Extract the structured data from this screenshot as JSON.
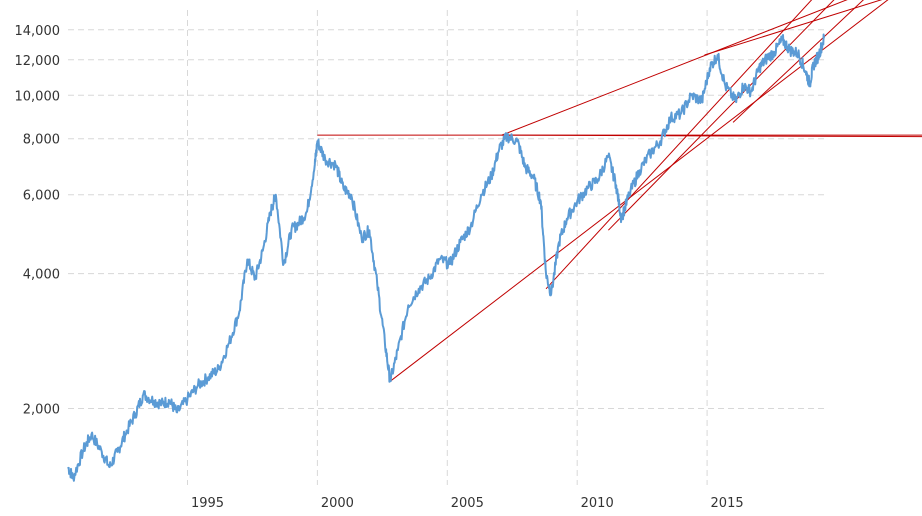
{
  "chart_data": {
    "type": "line",
    "title": "",
    "xlabel": "",
    "ylabel": "",
    "y_scale": "log",
    "xlim": [
      1990.4,
      2019.5
    ],
    "ylim": [
      1350,
      15500
    ],
    "grid": true,
    "x_ticks": [
      1995,
      2000,
      2005,
      2010,
      2015
    ],
    "x_tick_labels": [
      "1995",
      "2000",
      "2005",
      "2010",
      "2015"
    ],
    "y_ticks": [
      2000,
      4000,
      6000,
      8000,
      10000,
      12000,
      14000
    ],
    "y_tick_labels": [
      "2,000",
      "4,000",
      "6,000",
      "8,000",
      "10,000",
      "12,000",
      "14,000"
    ],
    "colors": {
      "series": "#5b9bd5",
      "trendlines": "#c00000",
      "grid": "#d8d8d8",
      "text": "#333333"
    },
    "series": [
      {
        "x": [
          1990.4,
          1990.6,
          1991.0,
          1991.3,
          1991.7,
          1992.0,
          1992.3,
          1992.6,
          1993.0,
          1993.3,
          1993.7,
          1994.0,
          1994.3,
          1994.6,
          1995.0,
          1995.4,
          1995.8,
          1996.2,
          1996.6,
          1997.0,
          1997.3,
          1997.6,
          1997.9,
          1998.2,
          1998.4,
          1998.7,
          1999.0,
          1999.3,
          1999.6,
          1999.9,
          2000.0,
          2000.3,
          2000.7,
          2001.0,
          2001.3,
          2001.7,
          2002.0,
          2002.3,
          2002.6,
          2002.8,
          2003.1,
          2003.5,
          2003.9,
          2004.3,
          2004.7,
          2005.1,
          2005.5,
          2005.9,
          2006.3,
          2006.7,
          2007.0,
          2007.3,
          2007.7,
          2008.0,
          2008.3,
          2008.6,
          2008.8,
          2009.0,
          2009.3,
          2009.6,
          2010.0,
          2010.4,
          2010.8,
          2011.2,
          2011.5,
          2011.7,
          2012.0,
          2012.4,
          2012.8,
          2013.2,
          2013.6,
          2014.0,
          2014.4,
          2014.8,
          2015.1,
          2015.4,
          2015.7,
          2016.1,
          2016.4,
          2016.7,
          2017.0,
          2017.3,
          2017.6,
          2017.9,
          2018.2,
          2018.5,
          2018.8,
          2018.95,
          2019.1,
          2019.3,
          2019.5
        ],
        "y": [
          1480,
          1400,
          1620,
          1750,
          1600,
          1480,
          1600,
          1750,
          1950,
          2150,
          2080,
          2050,
          2080,
          1960,
          2100,
          2250,
          2350,
          2450,
          2800,
          3300,
          4300,
          3900,
          4500,
          5500,
          6000,
          4200,
          5000,
          5200,
          5500,
          7000,
          7900,
          7200,
          7000,
          6200,
          6000,
          4800,
          5000,
          3800,
          2800,
          2300,
          2700,
          3400,
          3700,
          3900,
          4300,
          4200,
          4700,
          5100,
          6000,
          6600,
          7600,
          8100,
          7900,
          6900,
          6600,
          5800,
          4000,
          3600,
          4700,
          5300,
          5800,
          6200,
          6500,
          7300,
          6300,
          5300,
          6000,
          6800,
          7400,
          7900,
          8900,
          9100,
          10000,
          9700,
          11500,
          12300,
          10500,
          9700,
          10500,
          10200,
          11500,
          12100,
          12500,
          13300,
          12600,
          12400,
          11300,
          10600,
          11700,
          12300,
          13400
        ]
      }
    ],
    "trendlines": [
      {
        "x": [
          2000.0,
          2007.1
        ],
        "y": [
          8150,
          8150
        ]
      },
      {
        "x": [
          2007.1,
          2019.5
        ],
        "y": [
          8150,
          8100
        ]
      },
      {
        "x": [
          2002.8,
          2019.5
        ],
        "y": [
          2300,
          12700
        ]
      },
      {
        "x": [
          2008.8,
          2019.5
        ],
        "y": [
          3700,
          17500
        ]
      },
      {
        "x": [
          2007.1,
          2019.5
        ],
        "y": [
          8150,
          15600
        ]
      },
      {
        "x": [
          2014.9,
          2019.5
        ],
        "y": [
          12300,
          14900
        ]
      },
      {
        "x": [
          2016.0,
          2019.5
        ],
        "y": [
          8700,
          13500
        ]
      },
      {
        "x": [
          2011.2,
          2019.5
        ],
        "y": [
          5000,
          15500
        ]
      }
    ]
  }
}
